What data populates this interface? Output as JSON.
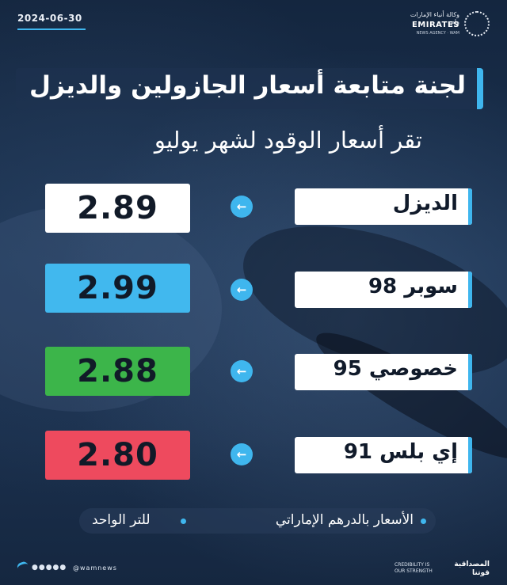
{
  "header": {
    "date": "2024-06-30",
    "logo_ar": "وكالة أنباء الإمارات وام",
    "logo_en": "EMIRATES",
    "logo_sub": "NEWS AGENCY · WAM"
  },
  "title": "لجنة متابعة أسعار الجازولين والديزل",
  "subtitle": "تقر أسعار الوقود لشهر يوليو",
  "fuel_prices": [
    {
      "label": "الديزل",
      "price": "2.89",
      "color": "#ffffff"
    },
    {
      "label": "سوبر 98",
      "price": "2.99",
      "color": "#41b8ee"
    },
    {
      "label": "خصوصي 95",
      "price": "2.88",
      "color": "#3cb54a"
    },
    {
      "label": "إي بلس 91",
      "price": "2.80",
      "color": "#ee4a5e"
    }
  ],
  "notes": {
    "currency": "الأسعار بالدرهم الإماراتي",
    "unit": "للتر الواحد"
  },
  "footer": {
    "social_handle": "@wamnews",
    "credibility_en_line1": "CREDIBILITY IS",
    "credibility_en_line2": "OUR STRENGTH",
    "credibility_ar_line1": "المصداقية",
    "credibility_ar_line2": "قوتنا"
  },
  "colors": {
    "accent": "#3fb6ee",
    "background": "#1b3352"
  },
  "icons": {
    "arrow": "arrow-left-icon",
    "logo": "wam-logo-icon"
  }
}
